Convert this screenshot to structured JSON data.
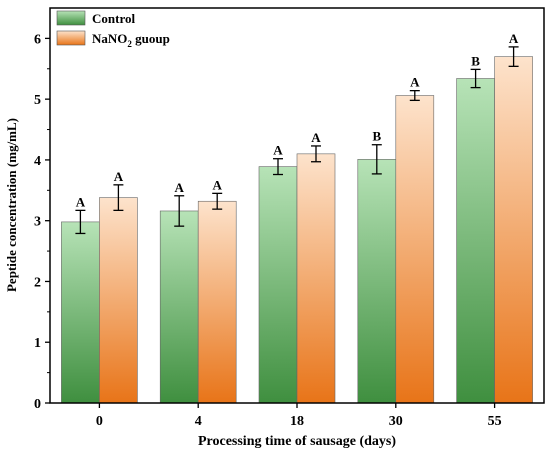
{
  "chart_data": {
    "type": "bar",
    "title": "",
    "xlabel": "Processing time of sausage (days)",
    "ylabel": "Peptide concentration (mg/mL)",
    "categories": [
      "0",
      "4",
      "18",
      "30",
      "55"
    ],
    "ylim": [
      0,
      6.5
    ],
    "yticks": [
      "0",
      "1",
      "2",
      "3",
      "4",
      "5",
      "6"
    ],
    "grid": false,
    "legend_position": "top-left",
    "series": [
      {
        "name": "Control",
        "legend_text": "Control",
        "values": [
          2.98,
          3.16,
          3.89,
          4.01,
          5.34
        ],
        "errors": [
          0.19,
          0.25,
          0.13,
          0.24,
          0.15
        ],
        "labels": [
          "A",
          "A",
          "A",
          "B",
          "B"
        ],
        "color_top": "#b7e3b7",
        "color_bottom": "#3f8f3f"
      },
      {
        "name": "NaNO2 guoup",
        "legend_text": "NaNO",
        "legend_sub": "2",
        "legend_tail": " guoup",
        "values": [
          3.38,
          3.32,
          4.1,
          5.06,
          5.7
        ],
        "errors": [
          0.21,
          0.13,
          0.13,
          0.08,
          0.16
        ],
        "labels": [
          "A",
          "A",
          "A",
          "A",
          "A"
        ],
        "color_top": "#fde3cc",
        "color_bottom": "#e87418"
      }
    ]
  }
}
